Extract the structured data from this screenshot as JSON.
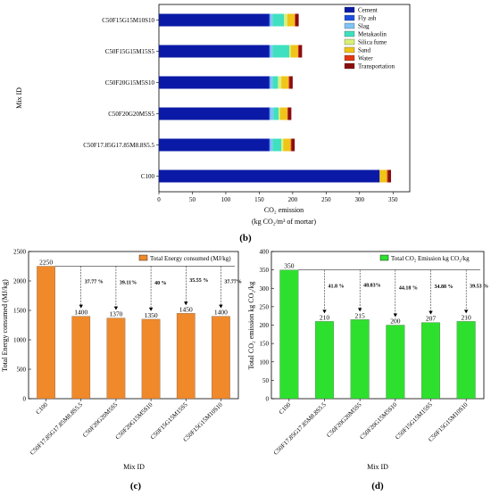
{
  "chart_data": [
    {
      "type": "bar",
      "orientation": "horizontal",
      "stacked": true,
      "panel_label": "(b)",
      "categories": [
        "C50F15G15M10S10",
        "C50F15G15M15S5",
        "C50F20G15M5S10",
        "C50F20G20M5S5",
        "C50F17.85G17.85M8.8S5.5",
        "C100"
      ],
      "ylabel": "Mix ID",
      "xlabel_line1": "CO₂ emission",
      "xlabel_line2": "(kg CO₂/m³ of mortar)",
      "xlim": [
        0,
        375
      ],
      "xticks": [
        "0",
        "50",
        "100",
        "150",
        "200",
        "250",
        "300",
        "350"
      ],
      "legend_position": "top-right",
      "series": [
        {
          "name": "Cement",
          "color": "#0a1aa6",
          "values": [
            165,
            165,
            165,
            165,
            165,
            330
          ]
        },
        {
          "name": "Fly ash",
          "color": "#1f4fe0",
          "values": [
            1,
            1,
            1,
            1,
            1,
            0
          ]
        },
        {
          "name": "Slag",
          "color": "#7fc4f5",
          "values": [
            4,
            4,
            4,
            5,
            4,
            0
          ]
        },
        {
          "name": "Metakaolin",
          "color": "#3fe0c0",
          "values": [
            17,
            25,
            8,
            8,
            13,
            0
          ]
        },
        {
          "name": "Silica fume",
          "color": "#d8f07a",
          "values": [
            5,
            2,
            5,
            2,
            3,
            0
          ]
        },
        {
          "name": "Sand",
          "color": "#f0c418",
          "values": [
            11,
            11,
            11,
            11,
            11,
            11
          ]
        },
        {
          "name": "Water",
          "color": "#e03a12",
          "values": [
            1,
            1,
            1,
            1,
            1,
            1
          ]
        },
        {
          "name": "Transportation",
          "color": "#8a0e0e",
          "values": [
            5,
            5,
            5,
            5,
            5,
            5
          ]
        }
      ]
    },
    {
      "type": "bar",
      "panel_label": "(c)",
      "categories": [
        "C100",
        "C50F17.85G17.85M8.8S5.5",
        "C50F20G20M5S5",
        "C50F20G15M5S10",
        "C50F15G15M15S5",
        "C50F15G15M10S10"
      ],
      "values": [
        2250,
        1400,
        1370,
        1350,
        1450,
        1400
      ],
      "value_labels": [
        "2250",
        "1400",
        "1370",
        "1350",
        "1450",
        "1400"
      ],
      "reduction_labels": [
        "37.77 %",
        "39.11%",
        "40 %",
        "35.55 %",
        "37.77%"
      ],
      "color": "#f0892a",
      "legend": "Total Energy consumed (MJ/kg)",
      "legend_position": "top-right",
      "xlabel": "Mix ID",
      "ylabel": "Total Energy consumed (MJ/kg)",
      "ylim": [
        0,
        2500
      ],
      "yticks": [
        "0",
        "500",
        "1000",
        "1500",
        "2000",
        "2500"
      ]
    },
    {
      "type": "bar",
      "panel_label": "(d)",
      "categories": [
        "C100",
        "C50F17.85G17.85M8.8S5.5",
        "C50F20G20M5S5",
        "C50F20G15M5S10",
        "C50F15G15M15S5",
        "C50F15G15M10S10"
      ],
      "values": [
        350,
        210,
        215,
        200,
        207,
        210
      ],
      "value_labels": [
        "350",
        "210",
        "215",
        "200",
        "207",
        "210"
      ],
      "reduction_labels": [
        "41.8 %",
        "48.83%",
        "44.18 %",
        "34.88 %",
        "39.53 %"
      ],
      "color": "#2ee02e",
      "legend": "Total CO₂ Emission kg CO₂/kg",
      "legend_position": "top-right",
      "xlabel": "Mix ID",
      "ylabel": "Total CO₂ emission kg CO₂/kg",
      "ylim": [
        0,
        400
      ],
      "yticks": [
        "0",
        "50",
        "100",
        "150",
        "200",
        "250",
        "300",
        "350",
        "400"
      ]
    }
  ]
}
